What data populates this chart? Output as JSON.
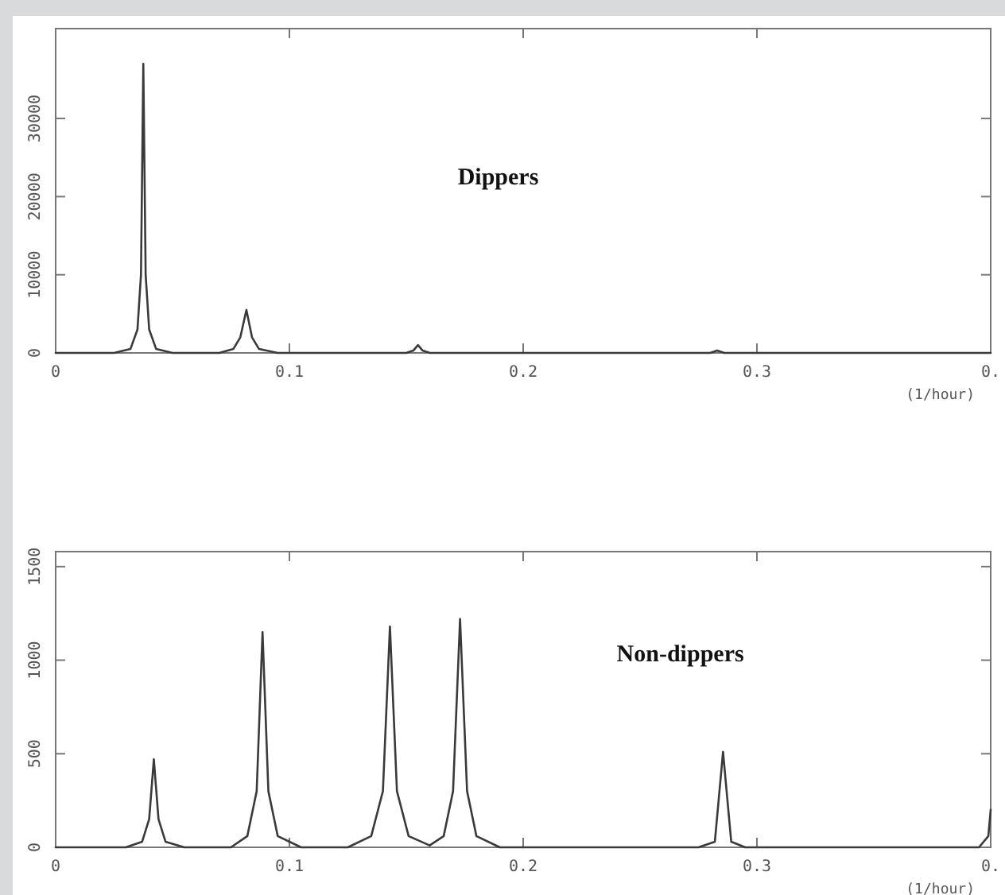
{
  "chart_data": [
    {
      "type": "line",
      "xlabel": "(1/hour)",
      "annotations": [
        "Dippers"
      ],
      "series": [
        {
          "color": "#3a3a3a",
          "x": [
            0,
            0.025,
            0.032,
            0.035,
            0.0365,
            0.0375,
            0.0385,
            0.04,
            0.043,
            0.05,
            0.07,
            0.076,
            0.079,
            0.0816,
            0.084,
            0.087,
            0.095,
            0.15,
            0.153,
            0.155,
            0.157,
            0.16,
            0.28,
            0.283,
            0.286,
            0.4
          ],
          "values": [
            0,
            0,
            500,
            3000,
            10000,
            37000,
            10000,
            3000,
            500,
            0,
            0,
            500,
            2000,
            5500,
            2000,
            500,
            0,
            0,
            300,
            1000,
            300,
            0,
            0,
            300,
            0,
            0
          ]
        }
      ],
      "xlim": [
        0,
        0.4
      ],
      "xticks": [
        0,
        0.1,
        0.2,
        0.3,
        {
          "value": 0.4,
          "label": "0."
        }
      ],
      "ylim": [
        0,
        41500
      ],
      "yticks": [
        0,
        10000,
        20000,
        30000
      ],
      "line_style": "solid",
      "marker": "none"
    },
    {
      "type": "line",
      "xlabel": "(1/hour)",
      "annotations": [
        "Non-dippers"
      ],
      "series": [
        {
          "color": "#3a3a3a",
          "x": [
            0,
            0.03,
            0.037,
            0.04,
            0.042,
            0.044,
            0.047,
            0.055,
            0.075,
            0.082,
            0.086,
            0.0885,
            0.091,
            0.095,
            0.105,
            0.125,
            0.135,
            0.14,
            0.143,
            0.146,
            0.151,
            0.16,
            0.166,
            0.17,
            0.173,
            0.176,
            0.18,
            0.19,
            0.275,
            0.282,
            0.2855,
            0.289,
            0.295,
            0.395,
            0.399,
            0.4
          ],
          "values": [
            0,
            0,
            30,
            150,
            470,
            150,
            30,
            0,
            0,
            60,
            300,
            1150,
            300,
            60,
            0,
            0,
            60,
            300,
            1180,
            300,
            60,
            10,
            60,
            300,
            1220,
            300,
            60,
            0,
            0,
            30,
            510,
            30,
            0,
            0,
            60,
            200
          ]
        }
      ],
      "xlim": [
        0,
        0.4
      ],
      "xticks": [
        0,
        0.1,
        0.2,
        0.3,
        {
          "value": 0.4,
          "label": "0."
        }
      ],
      "ylim": [
        0,
        1580
      ],
      "yticks": [
        0,
        500,
        1000,
        1500
      ],
      "line_style": "solid",
      "marker": "none"
    }
  ]
}
